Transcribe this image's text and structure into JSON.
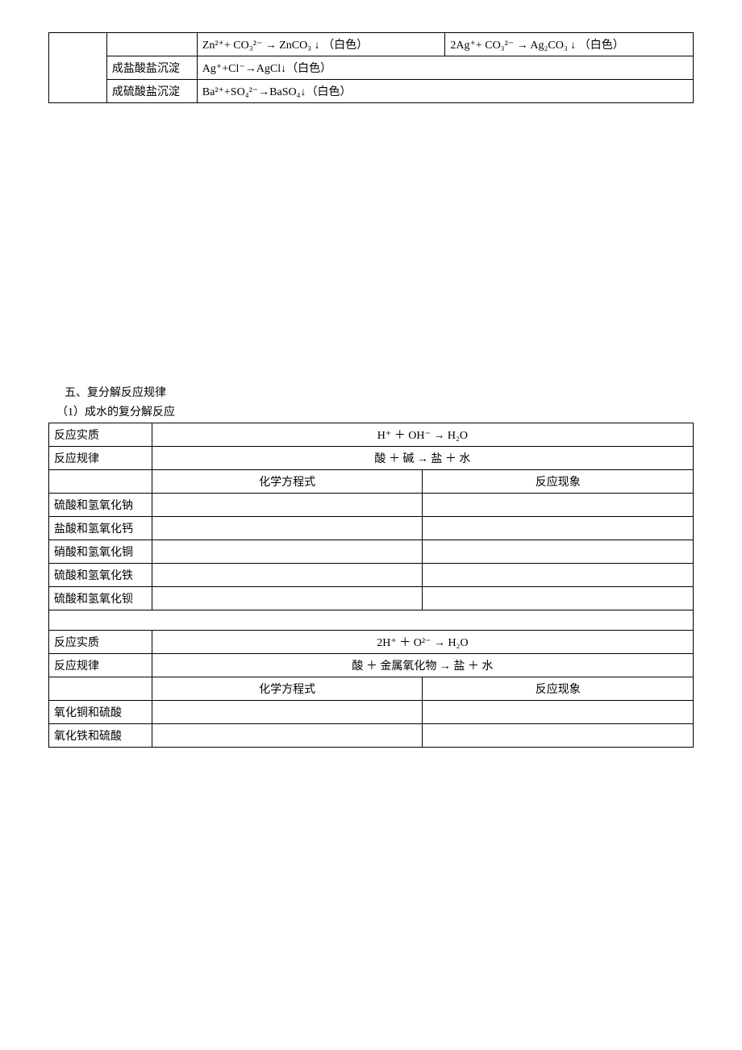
{
  "table1": {
    "row1": {
      "cell3": "Zn²⁺+ CO₃²⁻ → ZnCO₃ ↓ （白色）",
      "cell4": "2Ag⁺+ CO₃²⁻ → Ag₂CO₃ ↓ （白色）"
    },
    "row2": {
      "label": "成盐酸盐沉淀",
      "value": "Ag⁺+Cl⁻→AgCl↓（白色）"
    },
    "row3": {
      "label": "成硫酸盐沉淀",
      "value": "Ba²⁺+SO₄²⁻→BaSO₄↓（白色）"
    }
  },
  "section5": {
    "title": "五、复分解反应规律",
    "sub1": "（1）成水的复分解反应"
  },
  "table2": {
    "r1c1": "反应实质",
    "r1c2": "H⁺ ＋ OH⁻ → H₂O",
    "r2c1": "反应规律",
    "r2c2": "酸 ＋ 碱 → 盐 ＋ 水",
    "r3c2": "化学方程式",
    "r3c3": "反应现象",
    "r4c1": "硫酸和氢氧化钠",
    "r5c1": "盐酸和氢氧化钙",
    "r6c1": "硝酸和氢氧化铜",
    "r7c1": "硫酸和氢氧化铁",
    "r8c1": "硫酸和氢氧化钡",
    "r10c1": "反应实质",
    "r10c2": "2H⁺ ＋ O²⁻ → H₂O",
    "r11c1": "反应规律",
    "r11c2": "酸 ＋ 金属氧化物 → 盐 ＋ 水",
    "r12c2": "化学方程式",
    "r12c3": "反应现象",
    "r13c1": "氧化铜和硫酸",
    "r14c1": "氧化铁和硫酸"
  }
}
